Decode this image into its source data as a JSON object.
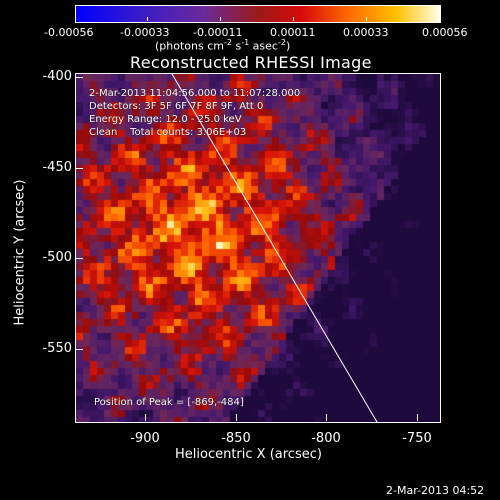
{
  "colorbar": {
    "ticks": [
      "-0.00056",
      "-0.00033",
      "-0.00011",
      "0.00011",
      "0.00033",
      "0.00056"
    ],
    "units_prefix": "(photons cm",
    "units_exp1": "-2",
    "units_mid": " s",
    "units_exp2": "-1",
    "units_mid2": " asec",
    "units_exp3": "-2",
    "units_suffix": ")"
  },
  "title": "Reconstructed RHESSI Image",
  "annotations": {
    "line1": "2-Mar-2013 11:04:56.000 to 11:07:28.000",
    "line2": "Detectors: 3F 5F 6F 7F 8F 9F, Att 0",
    "line3": "Energy Range: 12.0 - 25.0 keV",
    "line4": "Clean    Total counts: 3.06E+03",
    "peak": "Position of Peak = [-869,-484]"
  },
  "axes": {
    "xlabel": "Heliocentric X (arcsec)",
    "ylabel": "Heliocentric Y (arcsec)",
    "xticks": [
      "-900",
      "-850",
      "-800",
      "-750"
    ],
    "yticks": [
      "-400",
      "-450",
      "-500",
      "-550"
    ]
  },
  "footer": {
    "timestamp": "2-Mar-2013 04:52"
  }
}
